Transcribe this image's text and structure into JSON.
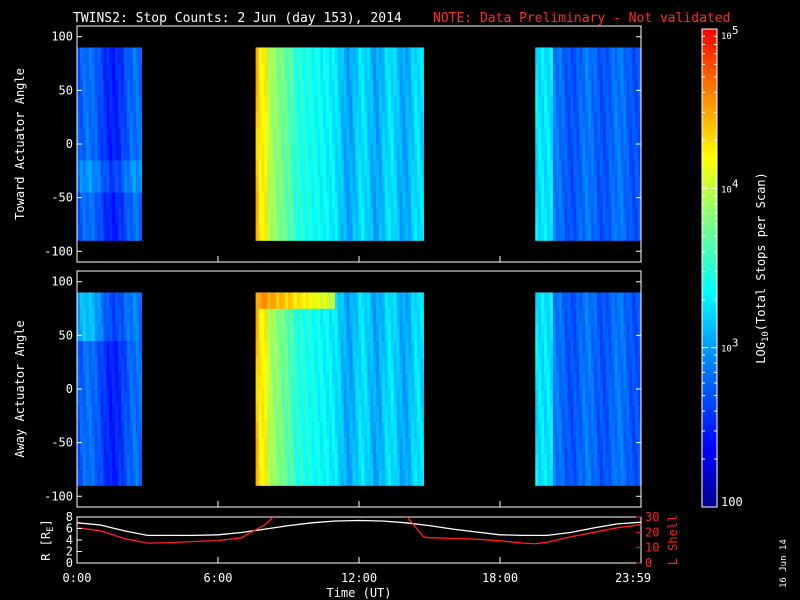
{
  "header": {
    "title": "TWINS2: Stop Counts:  2 Jun (day 153), 2014",
    "note": "NOTE: Data Preliminary - Not validated"
  },
  "footer": {
    "date_stamp": "16 Jun 14"
  },
  "colors": {
    "background": "#000000",
    "note": "#ff2a2a",
    "r_line": "#ffffff",
    "lshell_line": "#ff2020",
    "frame": "#ffffff"
  },
  "chart_data": [
    {
      "type": "heatmap",
      "name": "toward",
      "ylabel": "Toward Actuator Angle",
      "ylim": [
        -110,
        110
      ],
      "y_range": [
        -90,
        90
      ],
      "yticks": [
        "100",
        "50",
        "0",
        "-50",
        "-100"
      ],
      "ytick_values": [
        100,
        50,
        0,
        -50,
        -100
      ],
      "x_range_hours": [
        0,
        24
      ],
      "scale": "log",
      "coverage_hours": [
        [
          0.0,
          2.75
        ],
        [
          7.6,
          14.75
        ],
        [
          19.5,
          24.0
        ]
      ],
      "gaps_hours": [
        [
          2.75,
          7.6
        ],
        [
          14.75,
          19.5
        ]
      ]
    },
    {
      "type": "heatmap",
      "name": "away",
      "ylabel": "Away Actuator Angle",
      "ylim": [
        -110,
        110
      ],
      "y_range": [
        -90,
        90
      ],
      "yticks": [
        "100",
        "50",
        "0",
        "-50",
        "-100"
      ],
      "ytick_values": [
        100,
        50,
        0,
        -50,
        -100
      ],
      "x_range_hours": [
        0,
        24
      ],
      "scale": "log",
      "coverage_hours": [
        [
          0.0,
          2.75
        ],
        [
          7.6,
          14.75
        ],
        [
          19.5,
          24.0
        ]
      ],
      "gaps_hours": [
        [
          2.75,
          7.6
        ],
        [
          14.75,
          19.5
        ]
      ]
    },
    {
      "type": "line",
      "name": "orbit",
      "xlabel": "Time (UT)",
      "xticks": [
        "0:00",
        "6:00",
        "12:00",
        "18:00",
        "23:59"
      ],
      "xtick_hours": [
        0,
        6,
        12,
        18,
        24
      ],
      "ylabel_left": "R [RE]",
      "ylabel_left_main": "R [R",
      "ylabel_left_sub": "E",
      "ylabel_left_close": "]",
      "ylim_left": [
        0,
        8
      ],
      "yticks_left": [
        "0",
        "2",
        "4",
        "6",
        "8"
      ],
      "ytick_left_values": [
        0,
        2,
        4,
        6,
        8
      ],
      "ylabel_right": "L Shell",
      "ylim_right": [
        0,
        30
      ],
      "yticks_right": [
        "0",
        "10",
        "20",
        "30"
      ],
      "ytick_right_values": [
        0,
        10,
        20,
        30
      ],
      "series": [
        {
          "name": "R",
          "axis": "left",
          "x": [
            0,
            1,
            2,
            3,
            4,
            5,
            6,
            7,
            8,
            9,
            10,
            11,
            12,
            13,
            14,
            15,
            16,
            17,
            18,
            19,
            20,
            21,
            22,
            23,
            24
          ],
          "y": [
            7.0,
            6.6,
            5.6,
            4.8,
            4.8,
            4.8,
            4.9,
            5.3,
            5.9,
            6.5,
            7.0,
            7.3,
            7.4,
            7.3,
            7.0,
            6.5,
            5.9,
            5.4,
            4.9,
            4.8,
            4.8,
            5.3,
            6.1,
            6.8,
            7.1
          ]
        },
        {
          "name": "L",
          "axis": "right",
          "x": [
            0,
            1,
            2,
            3,
            4,
            5,
            6,
            7,
            8,
            8.5,
            9,
            13.5,
            14,
            14.75,
            15,
            16,
            17,
            18,
            19,
            19.5,
            20,
            21,
            22,
            23,
            24
          ],
          "y": [
            23.0,
            21.0,
            16.0,
            13.0,
            13.3,
            14.0,
            14.6,
            16.5,
            25.0,
            32.0,
            35.0,
            35.0,
            31.0,
            17.0,
            16.5,
            16.0,
            15.5,
            14.5,
            13.0,
            12.6,
            13.5,
            17.0,
            20.0,
            23.0,
            25.0
          ]
        }
      ]
    }
  ],
  "colorbar": {
    "label": "LOG10(Total Stops per Scan)",
    "label_pre": "LOG",
    "label_sub": "10",
    "label_post": "(Total Stops per Scan)",
    "scale": "log",
    "range": [
      100,
      100000
    ],
    "ticks": [
      {
        "value": 100,
        "base": "100",
        "exp": ""
      },
      {
        "value": 1000,
        "base": "10",
        "exp": "3"
      },
      {
        "value": 10000,
        "base": "10",
        "exp": "4"
      },
      {
        "value": 100000,
        "base": "10",
        "exp": "5"
      }
    ]
  }
}
